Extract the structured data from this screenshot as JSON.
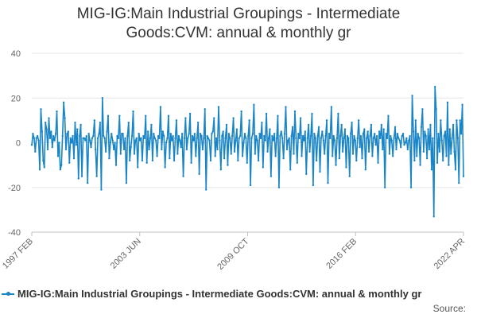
{
  "chart_data": {
    "type": "line",
    "title_lines": [
      "MIG-IG:Main Industrial Groupings - Intermediate",
      "Goods:CVM: annual & monthly gr"
    ],
    "ylim": [
      -40,
      40
    ],
    "yticks": [
      -40,
      -20,
      0,
      20,
      40
    ],
    "xticks": [
      "1997 FEB",
      "2003 JUN",
      "2009 OCT",
      "2016 FEB",
      "2022 APR"
    ],
    "grid": "horizontal",
    "legend_position": "bottom",
    "series": [
      {
        "name": "MIG-IG:Main Industrial Groupings - Intermediate Goods:CVM: annual & monthly gr",
        "color": "#1a85c6",
        "start": "1997-02",
        "values": [
          -1,
          4,
          2,
          -4,
          2,
          3,
          1,
          -12,
          15,
          5,
          -8,
          -11,
          9,
          6,
          -3,
          11,
          2,
          5,
          -2,
          3,
          1,
          4,
          14,
          -6,
          0,
          -12,
          -10,
          3,
          18,
          11,
          -3,
          4,
          5,
          -9,
          2,
          0,
          3,
          -7,
          9,
          -1,
          6,
          -16,
          3,
          8,
          -15,
          2,
          2,
          1,
          3,
          -18,
          4,
          1,
          -2,
          2,
          3,
          10,
          -3,
          -15,
          2,
          4,
          9,
          -21,
          20,
          3,
          2,
          -4,
          5,
          12,
          -7,
          0,
          4,
          1,
          -3,
          0,
          -10,
          3,
          2,
          12,
          -5,
          4,
          4,
          -3,
          2,
          -18,
          3,
          9,
          -8,
          -2,
          3,
          14,
          -5,
          1,
          2,
          -11,
          4,
          1,
          2,
          -8,
          3,
          2,
          12,
          -9,
          5,
          -3,
          2,
          8,
          -8,
          4,
          2,
          1,
          -6,
          3,
          2,
          16,
          -3,
          5,
          3,
          -11,
          0,
          2,
          12,
          -7,
          4,
          1,
          3,
          -8,
          2,
          10,
          -5,
          3,
          1,
          -2,
          4,
          -15,
          2,
          11,
          -3,
          2,
          4,
          13,
          -9,
          3,
          1,
          4,
          -6,
          2,
          9,
          -14,
          4,
          3,
          -3,
          2,
          15,
          -21,
          3,
          2,
          1,
          -8,
          4,
          5,
          11,
          -6,
          2,
          -3,
          16,
          1,
          -12,
          3,
          5,
          -7,
          2,
          8,
          -10,
          4,
          2,
          -5,
          3,
          11,
          -4,
          1,
          6,
          -8,
          2,
          3,
          14,
          -6,
          0,
          4,
          2,
          -9,
          3,
          10,
          -19,
          2,
          4,
          17,
          -5,
          3,
          1,
          -8,
          4,
          2,
          9,
          -11,
          3,
          1,
          13,
          -4,
          2,
          6,
          -15,
          3,
          1,
          4,
          -6,
          2,
          12,
          -20,
          3,
          5,
          2,
          -7,
          4,
          16,
          -3,
          1,
          2,
          -12,
          3,
          7,
          -5,
          14,
          2,
          -9,
          4,
          2,
          11,
          -6,
          3,
          1,
          5,
          -14,
          2,
          8,
          -4,
          3,
          13,
          -19,
          4,
          2,
          -8,
          3,
          7,
          -13,
          2,
          5,
          1,
          -5,
          3,
          10,
          -18,
          4,
          2,
          16,
          -6,
          3,
          1,
          -10,
          2,
          13,
          -7,
          3,
          8,
          -4,
          2,
          6,
          -11,
          3,
          2,
          -15,
          4,
          9,
          -5,
          3,
          1,
          -8,
          2,
          10,
          -2,
          3,
          -7,
          4,
          6,
          -12,
          2,
          5,
          -4,
          3,
          8,
          -6,
          2,
          4,
          -1,
          3,
          -9,
          5,
          2,
          8,
          -3,
          6,
          -20,
          4,
          2,
          12,
          -5,
          3,
          1,
          -6,
          2,
          7,
          -3,
          4,
          2,
          1,
          -2,
          3,
          4,
          -1,
          0,
          2,
          -3,
          1,
          3,
          -20,
          21,
          5,
          -8,
          10,
          -6,
          4,
          2,
          -10,
          7,
          15,
          -4,
          5,
          3,
          -7,
          6,
          -3,
          8,
          -12,
          2,
          -33,
          25,
          15,
          -9,
          4,
          -4,
          10,
          1,
          -8,
          3,
          5,
          -6,
          18,
          -10,
          6,
          -5,
          2,
          8,
          -4,
          -12,
          10,
          2,
          -18,
          10,
          4,
          17,
          -15
        ]
      }
    ]
  },
  "legend": {
    "label": "MIG-IG:Main Industrial Groupings - Intermediate Goods:CVM: annual & monthly gr"
  },
  "source": {
    "label": "Source:"
  }
}
